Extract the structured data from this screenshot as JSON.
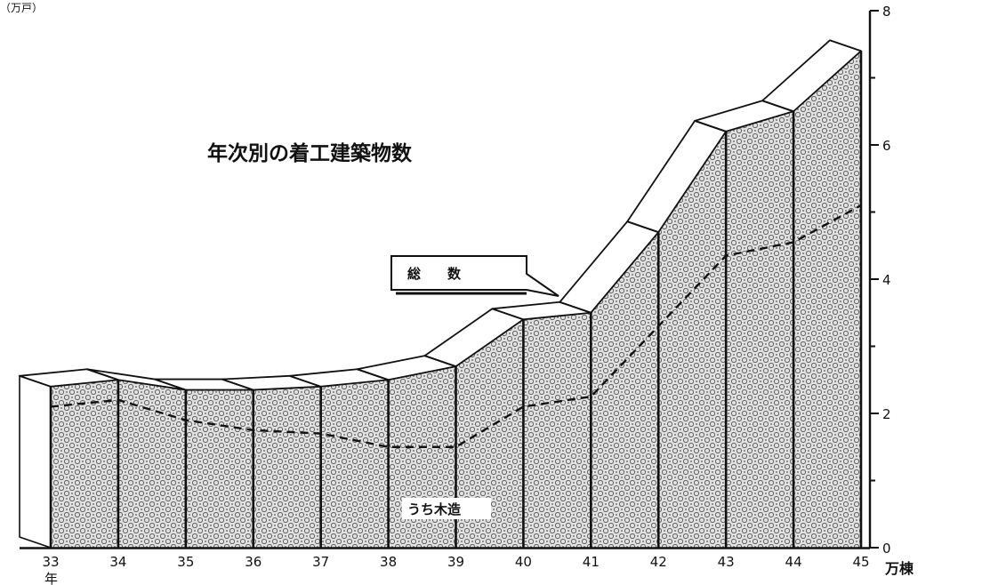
{
  "chart_data": {
    "type": "area",
    "title": "年次別の着工建築物数",
    "corner_label": "（万戸）",
    "x": [
      "33",
      "34",
      "35",
      "36",
      "37",
      "38",
      "39",
      "40",
      "41",
      "42",
      "43",
      "44",
      "45"
    ],
    "x_unit": "年",
    "y_unit": "万棟",
    "ylim": [
      0,
      8
    ],
    "yticks": [
      0,
      2,
      4,
      6,
      8
    ],
    "series": [
      {
        "name": "総数",
        "values": [
          2.4,
          2.5,
          2.35,
          2.35,
          2.4,
          2.5,
          2.7,
          3.4,
          3.5,
          4.7,
          6.2,
          6.5,
          7.4
        ]
      },
      {
        "name": "うち木造",
        "values": [
          2.1,
          2.2,
          1.9,
          1.75,
          1.7,
          1.5,
          1.5,
          2.1,
          2.25,
          3.3,
          4.35,
          4.55,
          5.1
        ]
      }
    ],
    "callout_label": "総　　数"
  }
}
